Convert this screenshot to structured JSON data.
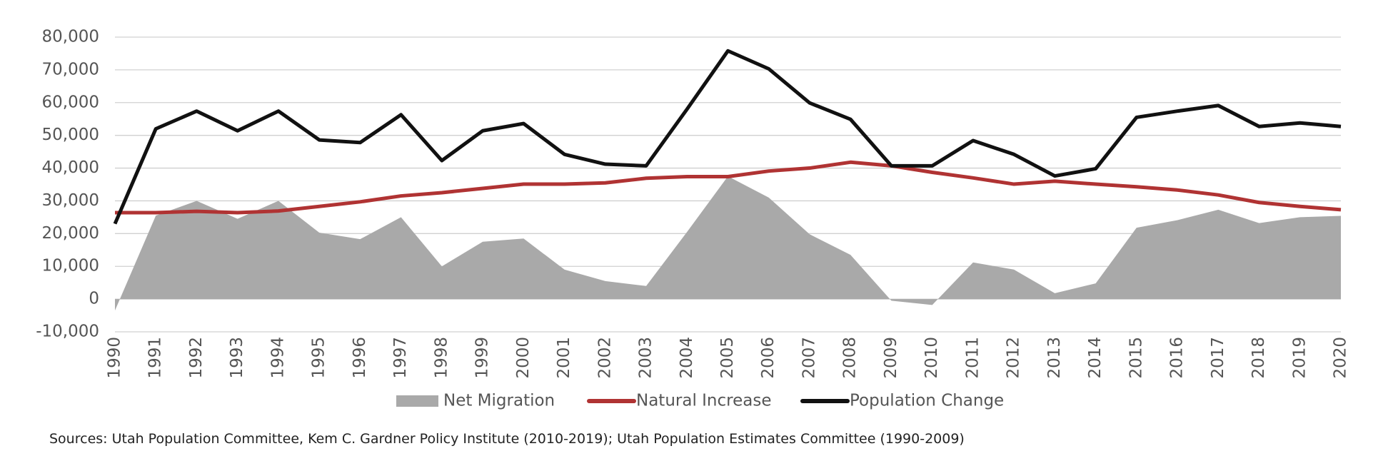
{
  "chart_data": {
    "type": "line",
    "categories": [
      "1990",
      "1991",
      "1992",
      "1993",
      "1994",
      "1995",
      "1996",
      "1997",
      "1998",
      "1999",
      "2000",
      "2001",
      "2002",
      "2003",
      "2004",
      "2005",
      "2006",
      "2007",
      "2008",
      "2009",
      "2010",
      "2011",
      "2012",
      "2013",
      "2014",
      "2015",
      "2016",
      "2017",
      "2018",
      "2019",
      "2020"
    ],
    "series": [
      {
        "name": "Net Migration",
        "color": "#a9a9a9",
        "kind": "area",
        "values": [
          -3500,
          25500,
          30000,
          24500,
          30000,
          20300,
          18300,
          25000,
          10000,
          17500,
          18500,
          9000,
          5500,
          4000,
          20500,
          37500,
          31000,
          19800,
          13500,
          -500,
          -1800,
          11200,
          9000,
          1800,
          4800,
          21800,
          24100,
          27300,
          23200,
          25000,
          25400
        ]
      },
      {
        "name": "Natural Increase",
        "color": "#b03333",
        "kind": "line",
        "values": [
          26400,
          26400,
          26800,
          26400,
          26900,
          28300,
          29700,
          31500,
          32500,
          33800,
          35100,
          35100,
          35500,
          36900,
          37400,
          37400,
          39100,
          40000,
          41800,
          40700,
          38700,
          37000,
          35100,
          36000,
          35100,
          34300,
          33300,
          31800,
          29500,
          28300,
          27300
        ]
      },
      {
        "name": "Population Change",
        "color": "#111111",
        "kind": "line",
        "values": [
          23000,
          52000,
          57400,
          51400,
          57400,
          48600,
          47800,
          56300,
          42300,
          51400,
          53600,
          44200,
          41200,
          40700,
          58000,
          75800,
          70300,
          59900,
          54900,
          40700,
          40700,
          48400,
          44200,
          37600,
          39800,
          55500,
          57400,
          59100,
          52700,
          53800,
          52700
        ]
      }
    ],
    "ylim": [
      -10000,
      80000
    ],
    "yticks": [
      {
        "value": -10000,
        "label": "-10,000"
      },
      0,
      {
        "value": 10000,
        "label": "10,000"
      },
      {
        "value": 20000,
        "label": "20,000"
      },
      {
        "value": 30000,
        "label": "30,000"
      },
      {
        "value": 40000,
        "label": "40,000"
      },
      {
        "value": 50000,
        "label": "50,000"
      },
      {
        "value": 60000,
        "label": "60,000"
      },
      {
        "value": 70000,
        "label": "70,000"
      },
      {
        "value": 80000,
        "label": "80,000"
      }
    ],
    "grid": true,
    "legend": "bottom",
    "source": "Sources: Utah Population Committee,  Kem C. Gardner Policy Institute (2010-2019); Utah Population Estimates Committee (1990-2009)"
  }
}
